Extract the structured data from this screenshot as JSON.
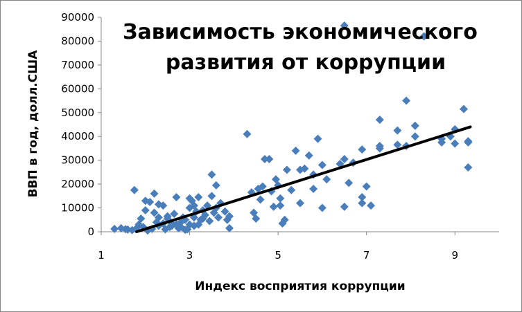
{
  "chart_data": {
    "type": "scatter",
    "title_lines": [
      "Зависимость экономического",
      "развития от коррупции"
    ],
    "xlabel": "Индекс восприятия коррупции",
    "ylabel": "ВВП в год, долл.США",
    "xlim": [
      1,
      10
    ],
    "ylim": [
      0,
      90000
    ],
    "xticks": [
      1,
      3,
      5,
      7,
      9
    ],
    "yticks": [
      0,
      10000,
      20000,
      30000,
      40000,
      50000,
      60000,
      70000,
      80000,
      90000
    ],
    "marker_color": "#4a7ebb",
    "trendline_color": "#000000",
    "grid": "none",
    "legend": "none",
    "trendline": {
      "x": [
        1.8,
        9.35
      ],
      "y": [
        0,
        44000
      ]
    },
    "points": [
      [
        1.3,
        1200
      ],
      [
        1.45,
        1500
      ],
      [
        1.55,
        1100
      ],
      [
        1.6,
        900
      ],
      [
        1.7,
        700
      ],
      [
        1.75,
        17500
      ],
      [
        1.8,
        1500
      ],
      [
        1.85,
        3000
      ],
      [
        1.9,
        5500
      ],
      [
        1.95,
        2000
      ],
      [
        2.0,
        9000
      ],
      [
        2.0,
        13000
      ],
      [
        2.05,
        500
      ],
      [
        2.1,
        12500
      ],
      [
        2.15,
        1200
      ],
      [
        2.2,
        8000
      ],
      [
        2.2,
        16000
      ],
      [
        2.25,
        4000
      ],
      [
        2.3,
        2500
      ],
      [
        2.3,
        11500
      ],
      [
        2.4,
        11000
      ],
      [
        2.45,
        1000
      ],
      [
        2.5,
        5500
      ],
      [
        2.55,
        2000
      ],
      [
        2.6,
        3500
      ],
      [
        2.65,
        7500
      ],
      [
        2.7,
        14500
      ],
      [
        2.75,
        1500
      ],
      [
        2.8,
        4000
      ],
      [
        2.85,
        6000
      ],
      [
        2.9,
        800
      ],
      [
        2.95,
        1000
      ],
      [
        3.0,
        14000
      ],
      [
        3.0,
        10000
      ],
      [
        3.05,
        13000
      ],
      [
        3.1,
        11000
      ],
      [
        3.1,
        2500
      ],
      [
        3.15,
        8500
      ],
      [
        3.2,
        14500
      ],
      [
        3.2,
        3000
      ],
      [
        3.25,
        5000
      ],
      [
        3.3,
        9000
      ],
      [
        3.35,
        7000
      ],
      [
        3.4,
        11000
      ],
      [
        3.45,
        4500
      ],
      [
        3.5,
        24000
      ],
      [
        3.5,
        15000
      ],
      [
        3.55,
        8000
      ],
      [
        3.6,
        19500
      ],
      [
        3.6,
        10000
      ],
      [
        3.65,
        6000
      ],
      [
        3.7,
        12000
      ],
      [
        3.8,
        8500
      ],
      [
        3.85,
        5000
      ],
      [
        3.9,
        1500
      ],
      [
        3.9,
        6500
      ],
      [
        4.3,
        41000
      ],
      [
        4.4,
        16500
      ],
      [
        4.45,
        8000
      ],
      [
        4.5,
        5500
      ],
      [
        4.55,
        18000
      ],
      [
        4.6,
        13500
      ],
      [
        4.65,
        19000
      ],
      [
        4.7,
        30500
      ],
      [
        4.8,
        30500
      ],
      [
        4.85,
        17000
      ],
      [
        4.9,
        10500
      ],
      [
        4.95,
        22000
      ],
      [
        5.0,
        19500
      ],
      [
        5.05,
        14000
      ],
      [
        5.05,
        11000
      ],
      [
        5.1,
        3500
      ],
      [
        5.15,
        5000
      ],
      [
        5.2,
        26000
      ],
      [
        5.3,
        17500
      ],
      [
        5.4,
        34000
      ],
      [
        5.5,
        26000
      ],
      [
        5.5,
        12000
      ],
      [
        5.6,
        26500
      ],
      [
        5.7,
        32000
      ],
      [
        5.8,
        24000
      ],
      [
        5.8,
        18000
      ],
      [
        5.9,
        39000
      ],
      [
        6.0,
        28000
      ],
      [
        6.0,
        10000
      ],
      [
        6.1,
        22000
      ],
      [
        6.4,
        28500
      ],
      [
        6.5,
        30500
      ],
      [
        6.5,
        86500
      ],
      [
        6.5,
        10500
      ],
      [
        6.6,
        20500
      ],
      [
        6.7,
        29000
      ],
      [
        6.9,
        34500
      ],
      [
        6.9,
        14500
      ],
      [
        6.9,
        12000
      ],
      [
        7.0,
        19000
      ],
      [
        7.1,
        11000
      ],
      [
        7.3,
        47000
      ],
      [
        7.3,
        36000
      ],
      [
        7.3,
        35000
      ],
      [
        7.7,
        42500
      ],
      [
        7.7,
        36500
      ],
      [
        7.9,
        55000
      ],
      [
        7.9,
        36000
      ],
      [
        8.1,
        44500
      ],
      [
        8.1,
        40000
      ],
      [
        8.3,
        82000
      ],
      [
        8.7,
        37500
      ],
      [
        8.7,
        39000
      ],
      [
        8.9,
        40000
      ],
      [
        9.0,
        43000
      ],
      [
        9.0,
        37000
      ],
      [
        9.2,
        51500
      ],
      [
        9.3,
        38000
      ],
      [
        9.3,
        37500
      ],
      [
        9.3,
        27000
      ],
      [
        2.5,
        6500
      ],
      [
        2.6,
        2500
      ],
      [
        2.9,
        5000
      ],
      [
        3.0,
        3000
      ],
      [
        3.1,
        6000
      ],
      [
        2.3,
        6000
      ],
      [
        2.7,
        3000
      ],
      [
        2.4,
        3500
      ],
      [
        2.8,
        2000
      ],
      [
        3.3,
        5500
      ]
    ]
  }
}
